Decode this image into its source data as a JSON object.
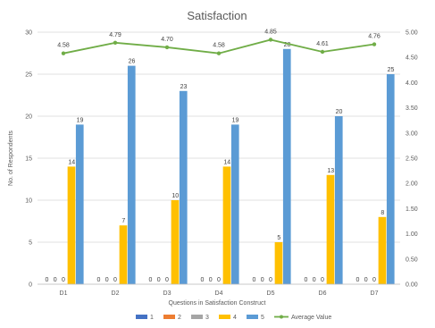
{
  "chart_data": {
    "type": "bar",
    "title": "Satisfaction",
    "xlabel": "Questions in Satisfaction Construct",
    "ylabel": "No. of Respondents",
    "categories": [
      "D1",
      "D2",
      "D3",
      "D4",
      "D5",
      "D6",
      "D7"
    ],
    "ylim": [
      0,
      30
    ],
    "yticks": [
      0,
      5,
      10,
      15,
      20,
      25,
      30
    ],
    "y2lim": [
      0,
      5
    ],
    "y2ticks": [
      "0.00",
      "0.50",
      "1.00",
      "1.50",
      "2.00",
      "2.50",
      "3.00",
      "3.50",
      "4.00",
      "4.50",
      "5.00"
    ],
    "series": [
      {
        "name": "1",
        "values": [
          0,
          0,
          0,
          0,
          0,
          0,
          0
        ],
        "color": "#4472c4"
      },
      {
        "name": "2",
        "values": [
          0,
          0,
          0,
          0,
          0,
          0,
          0
        ],
        "color": "#ed7d31"
      },
      {
        "name": "3",
        "values": [
          0,
          0,
          0,
          0,
          0,
          0,
          0
        ],
        "color": "#a5a5a5"
      },
      {
        "name": "4",
        "values": [
          14,
          7,
          10,
          14,
          5,
          13,
          8
        ],
        "color": "#ffc000"
      },
      {
        "name": "5",
        "values": [
          19,
          26,
          23,
          19,
          28,
          20,
          25
        ],
        "color": "#5b9bd5"
      }
    ],
    "line_series": {
      "name": "Average Value",
      "axis": "secondary",
      "values": [
        4.58,
        4.79,
        4.7,
        4.58,
        4.85,
        4.61,
        4.76
      ],
      "labels": [
        "4.58",
        "4.79",
        "4.70",
        "4.58",
        "4.85",
        "4.61",
        "4.76"
      ],
      "color": "#70ad47"
    },
    "grid": true,
    "legend": "bottom"
  }
}
